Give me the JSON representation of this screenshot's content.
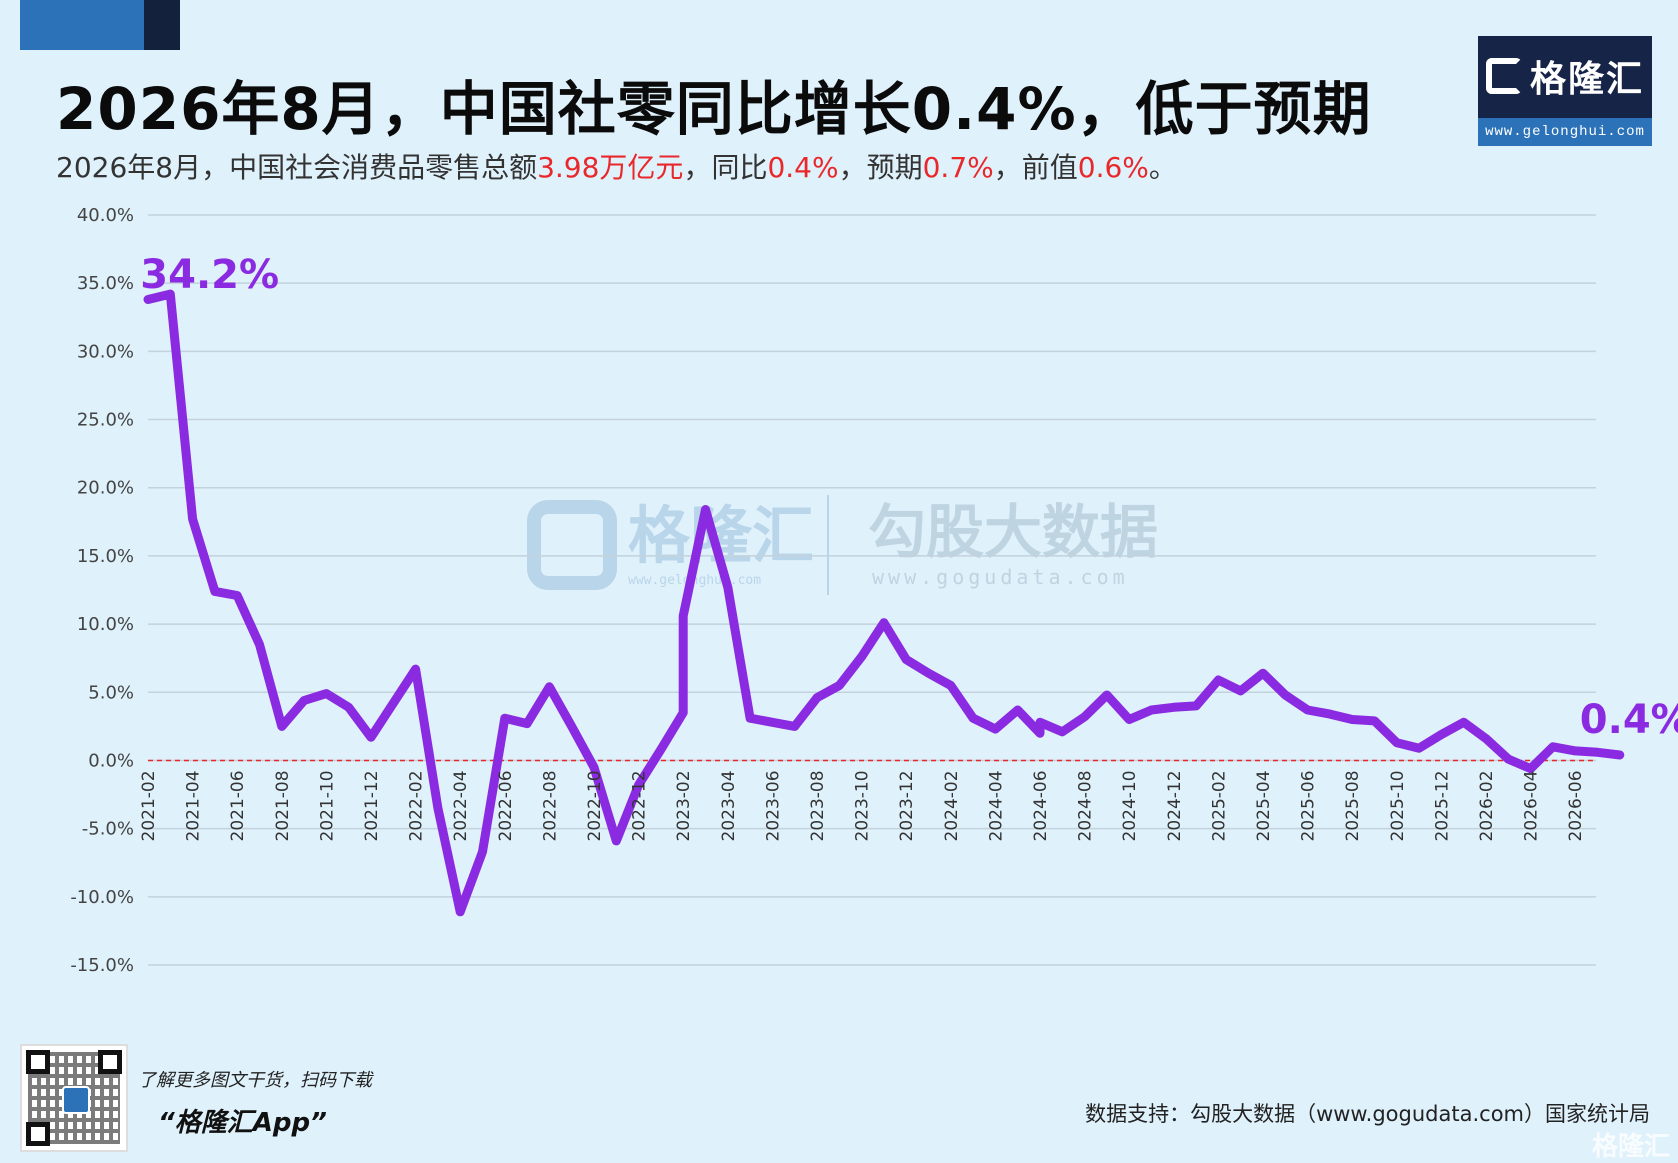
{
  "header": {
    "title": "2026年8月，中国社零同比增长0.4%，低于预期",
    "subtitle_parts": [
      "2026年8月，中国社会消费品零售总额",
      "3.98万亿元",
      "，同比",
      "0.4%",
      "，预期",
      "0.7%",
      "，前值",
      "0.6%",
      "。"
    ]
  },
  "brand": {
    "logo_text": "格隆汇",
    "logo_url": "www.gelonghui.com",
    "watermark_brand": "格隆汇",
    "watermark_brand_url": "www.gelonghui.com",
    "watermark_partner": "勾股大数据",
    "watermark_partner_url": "www.gogudata.com"
  },
  "footer": {
    "tip": "了解更多图文干货，扫码下载",
    "app": "“格隆汇App”",
    "source": "数据支持：勾股大数据（www.gogudata.com）国家统计局",
    "mark": "格隆汇"
  },
  "colors": {
    "background": "#dff1fb",
    "line": "#8a2be2",
    "highlight": "#e8282b",
    "grid": "#c3d2dc",
    "zero_line": "#e8282b"
  },
  "chart_data": {
    "type": "line",
    "title": "2026年8月，中国社零同比增长0.4%，低于预期",
    "xlabel": "",
    "ylabel": "",
    "ylim": [
      -15,
      40
    ],
    "yticks": [
      40,
      35,
      30,
      25,
      20,
      15,
      10,
      5,
      0,
      -5,
      -10,
      -15
    ],
    "ytick_labels": [
      "40.0%",
      "35.0%",
      "30.0%",
      "25.0%",
      "20.0%",
      "15.0%",
      "10.0%",
      "5.0%",
      "0.0%",
      "-5.0%",
      "-10.0%",
      "-15.0%"
    ],
    "x_tick_labels": [
      "2021-02",
      "2021-04",
      "2021-06",
      "2021-08",
      "2021-10",
      "2021-12",
      "2022-02",
      "2022-04",
      "2022-06",
      "2022-08",
      "2022-10",
      "2022-12",
      "2023-02",
      "2023-04",
      "2023-06",
      "2023-08",
      "2023-10",
      "2023-12",
      "2024-02",
      "2024-04",
      "2024-06",
      "2024-08",
      "2024-10",
      "2024-12",
      "2025-02",
      "2025-04",
      "2025-06",
      "2025-08",
      "2025-10",
      "2025-12",
      "2026-02",
      "2026-04",
      "2026-06"
    ],
    "grid": true,
    "zero_line": "dashed-red",
    "series": [
      {
        "x": [
          "2021-02",
          "2021-03",
          "2021-04",
          "2021-05",
          "2021-06",
          "2021-07",
          "2021-08",
          "2021-09",
          "2021-10",
          "2021-11",
          "2021-12",
          "2022-01",
          "2022-02",
          "2022-03",
          "2022-04",
          "2022-05",
          "2022-06",
          "2022-07",
          "2022-08",
          "2022-09",
          "2022-10",
          "2022-11",
          "2022-12",
          "2023-01",
          "2023-02",
          "2023-02",
          "2023-03",
          "2023-04",
          "2023-05",
          "2023-06",
          "2023-07",
          "2023-08",
          "2023-09",
          "2023-10",
          "2023-11",
          "2023-12",
          "2024-01",
          "2024-02",
          "2024-03",
          "2024-04",
          "2024-05",
          "2024-06",
          "2024-06",
          "2024-07",
          "2024-08",
          "2024-09",
          "2024-10",
          "2024-11",
          "2024-12",
          "2025-01",
          "2025-02",
          "2025-03",
          "2025-04",
          "2025-05",
          "2025-06",
          "2025-07",
          "2025-08",
          "2025-09",
          "2025-10",
          "2025-11",
          "2025-12",
          "2026-01",
          "2026-02",
          "2026-03",
          "2026-04",
          "2026-05",
          "2026-06",
          "2026-07",
          "2026-08"
        ],
        "values": [
          33.8,
          34.2,
          17.7,
          12.4,
          12.1,
          8.5,
          2.5,
          4.4,
          4.9,
          3.9,
          1.7,
          4.2,
          6.7,
          -3.5,
          -11.1,
          -6.7,
          3.1,
          2.7,
          5.4,
          2.5,
          -0.5,
          -5.9,
          -1.8,
          0.8,
          3.5,
          10.6,
          18.4,
          12.7,
          3.1,
          2.8,
          2.5,
          4.6,
          5.5,
          7.6,
          10.1,
          7.4,
          6.4,
          5.5,
          3.1,
          2.3,
          3.7,
          2.0,
          2.8,
          2.1,
          3.2,
          4.8,
          3.0,
          3.7,
          3.9,
          4.0,
          5.9,
          5.1,
          6.4,
          4.8,
          3.7,
          3.4,
          3.0,
          2.9,
          1.3,
          0.9,
          1.9,
          2.8,
          1.6,
          0.1,
          -0.6,
          1.0,
          0.7,
          0.6,
          0.4
        ]
      }
    ],
    "annotations": [
      {
        "text": "34.2%",
        "x": "2021-03",
        "y": 34.2
      },
      {
        "text": "0.4%",
        "x": "2026-08",
        "y": 0.4
      }
    ]
  }
}
